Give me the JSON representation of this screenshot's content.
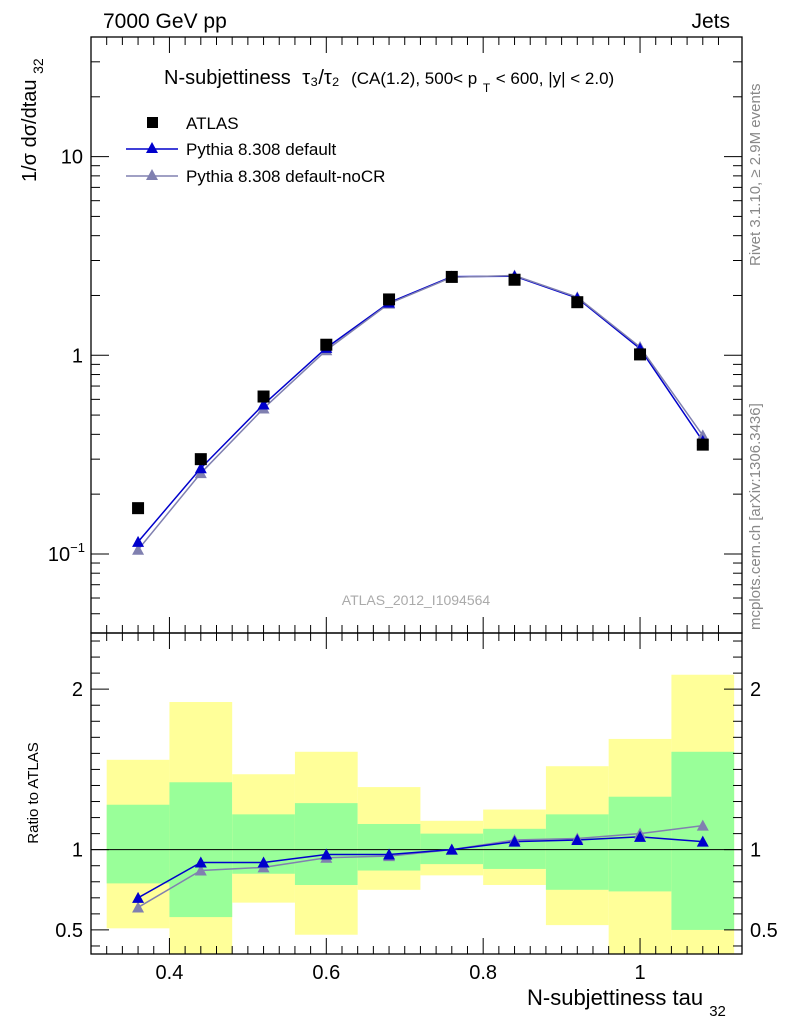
{
  "header": {
    "left": "7000 GeV pp",
    "right": "Jets"
  },
  "side_labels": {
    "rivet": "Rivet 3.1.10, ≥ 2.9M events",
    "mcplots": "mcplots.cern.ch [arXiv:1306.3436]"
  },
  "colors": {
    "atlas": "#000000",
    "default": "#0000cc",
    "noCR": "#8080b0",
    "band_inner": "#99ff99",
    "band_outer": "#ffff99"
  },
  "chart_data": [
    {
      "type": "scatter",
      "title_main": "N-subjettiness",
      "title_sym": "τ₃/τ₂",
      "title_sel": "(CA(1.2), 500< p",
      "title_sub": "T",
      "title_rest": " < 600, |y| < 2.0)",
      "ylabel": "1/σ dσ/dtau",
      "ylabel_sub": "32",
      "yscale": "log",
      "ylim": [
        0.04,
        40
      ],
      "xlim": [
        0.3,
        1.13
      ],
      "yticks": [
        {
          "value": 0.1,
          "label": "10",
          "exp": "−1"
        },
        {
          "value": 1,
          "label": "1",
          "exp": ""
        },
        {
          "value": 10,
          "label": "10",
          "exp": ""
        }
      ],
      "watermark": "ATLAS_2012_I1094564",
      "legend_position": "top-left",
      "x": [
        0.36,
        0.44,
        0.52,
        0.6,
        0.68,
        0.76,
        0.84,
        0.92,
        1.0,
        1.08
      ],
      "series": [
        {
          "name": "ATLAS",
          "marker": "square",
          "values": [
            0.17,
            0.3,
            0.62,
            1.13,
            1.91,
            2.48,
            2.4,
            1.85,
            1.01,
            0.355
          ]
        },
        {
          "name": "Pythia 8.308 default",
          "marker": "triangle",
          "values": [
            0.115,
            0.27,
            0.565,
            1.09,
            1.84,
            2.49,
            2.5,
            1.94,
            1.08,
            0.37
          ]
        },
        {
          "name": "Pythia 8.308 default-noCR",
          "marker": "triangle",
          "values": [
            0.105,
            0.255,
            0.54,
            1.06,
            1.82,
            2.47,
            2.52,
            1.96,
            1.1,
            0.395
          ]
        }
      ]
    },
    {
      "type": "line",
      "ylabel": "Ratio to ATLAS",
      "xlabel": "N-subjettiness tau",
      "xlabel_sub": "32",
      "xlim": [
        0.3,
        1.13
      ],
      "ylim": [
        0.35,
        2.35
      ],
      "xticks": [
        {
          "value": 0.4,
          "label": "0.4"
        },
        {
          "value": 0.6,
          "label": "0.6"
        },
        {
          "value": 0.8,
          "label": "0.8"
        },
        {
          "value": 1.0,
          "label": "1"
        }
      ],
      "yticks": [
        {
          "value": 0.5,
          "label": "0.5"
        },
        {
          "value": 1,
          "label": "1"
        },
        {
          "value": 2,
          "label": "2"
        }
      ],
      "bins": [
        [
          0.32,
          0.4
        ],
        [
          0.4,
          0.48
        ],
        [
          0.48,
          0.56
        ],
        [
          0.56,
          0.64
        ],
        [
          0.64,
          0.72
        ],
        [
          0.72,
          0.8
        ],
        [
          0.8,
          0.88
        ],
        [
          0.88,
          0.96
        ],
        [
          0.96,
          1.04
        ],
        [
          1.04,
          1.12
        ]
      ],
      "band_inner": [
        [
          0.79,
          1.28
        ],
        [
          0.58,
          1.42
        ],
        [
          0.85,
          1.22
        ],
        [
          0.78,
          1.29
        ],
        [
          0.87,
          1.16
        ],
        [
          0.91,
          1.1
        ],
        [
          0.88,
          1.13
        ],
        [
          0.75,
          1.22
        ],
        [
          0.74,
          1.33
        ],
        [
          0.5,
          1.61
        ]
      ],
      "band_outer": [
        [
          0.51,
          1.56
        ],
        [
          0.35,
          1.92
        ],
        [
          0.67,
          1.47
        ],
        [
          0.47,
          1.61
        ],
        [
          0.75,
          1.39
        ],
        [
          0.84,
          1.18
        ],
        [
          0.78,
          1.25
        ],
        [
          0.53,
          1.52
        ],
        [
          0.35,
          1.69
        ],
        [
          0.35,
          2.09
        ]
      ],
      "series": [
        {
          "name": "Pythia 8.308 default",
          "values": [
            0.7,
            0.92,
            0.92,
            0.97,
            0.97,
            1.0,
            1.05,
            1.06,
            1.08,
            1.05
          ]
        },
        {
          "name": "Pythia 8.308 default-noCR",
          "values": [
            0.64,
            0.87,
            0.89,
            0.95,
            0.96,
            1.0,
            1.06,
            1.07,
            1.1,
            1.15
          ]
        }
      ]
    }
  ]
}
